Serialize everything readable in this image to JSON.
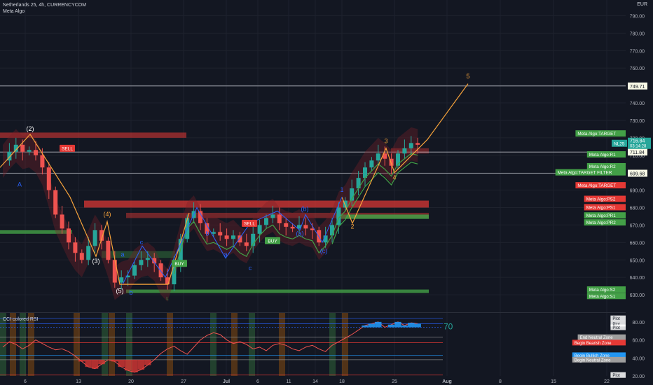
{
  "header": {
    "title": "Netherlands 25, 4h, CURRENCYCOM",
    "indicator": "Meta Algo",
    "currency": "EUR"
  },
  "colors": {
    "background": "#131722",
    "up": "#26a69a",
    "down": "#ef5350",
    "wave": "#f7a33b",
    "corrective": "#2962ff",
    "resistance": "#e53935",
    "support": "#43a047"
  },
  "chart_data": [
    {
      "type": "candlestick",
      "title": "Netherlands 25, 4h, CURRENCYCOM",
      "ylim": [
        620,
        795
      ],
      "y_ticks": [
        630,
        640,
        650,
        660,
        670,
        680,
        690,
        700,
        710,
        720,
        730,
        740,
        750,
        760,
        770,
        780,
        790
      ],
      "x_ticks": [
        "6",
        "13",
        "20",
        "27",
        "Jul",
        "6",
        "11",
        "14",
        "18",
        "25",
        "Aug",
        "8",
        "15",
        "22"
      ],
      "close_path": [
        707,
        712,
        716,
        712,
        713,
        710,
        703,
        690,
        676,
        668,
        660,
        654,
        650,
        658,
        667,
        661,
        650,
        637,
        640,
        641,
        647,
        650,
        651,
        648,
        640,
        636,
        648,
        662,
        674,
        678,
        671,
        665,
        666,
        664,
        662,
        664,
        660,
        658,
        665,
        670,
        674,
        676,
        671,
        669,
        668,
        670,
        668,
        667,
        660,
        664,
        670,
        680,
        684,
        691,
        697,
        703,
        707,
        711,
        708,
        704,
        711,
        714,
        717,
        716
      ],
      "levels": [
        {
          "label": "749.71",
          "value": 749.71
        },
        {
          "label": "711.84",
          "value": 711.84
        },
        {
          "label": "699.68",
          "value": 699.68
        }
      ],
      "last_price": {
        "symbol": "NL25",
        "price": "716.84",
        "countdown": "03:14:28"
      },
      "right_labels": [
        {
          "text": "Meta Algo:TARGET",
          "value": 722.5
        },
        {
          "text": "Meta Algo:R1",
          "value": 710.5
        },
        {
          "text": "Meta Algo:R2",
          "value": 703.7
        },
        {
          "text": "Meta Algo:TARGET FILTER",
          "value": 700.2
        },
        {
          "text": "Meta Algo:TARGET",
          "value": 692.8
        },
        {
          "text": "Meta Algo:PS2",
          "value": 685.0
        },
        {
          "text": "Meta Algo:PS1",
          "value": 680.2
        },
        {
          "text": "Meta Algo:PR1",
          "value": 675.5
        },
        {
          "text": "Meta Algo:PR2",
          "value": 671.5
        },
        {
          "text": "Meta Algo:S2",
          "value": 633.0
        },
        {
          "text": "Meta Algo:S1",
          "value": 629.3
        }
      ],
      "annotations": [
        "(2)",
        "(4)",
        "(3)",
        "(5)",
        "A",
        "a",
        "b",
        "c",
        "(a)",
        "(b)",
        "(c)",
        "1",
        "2",
        "3",
        "4",
        "5",
        "SELL",
        "BUY",
        "L"
      ]
    },
    {
      "type": "line",
      "title": "CCI colored RSI",
      "ylim": [
        20,
        90
      ],
      "y_ticks": [
        20,
        40,
        60,
        80
      ],
      "levels": [
        {
          "label": "Plot",
          "value": 84
        },
        {
          "label": "Plot",
          "value": 78
        },
        {
          "label": "Plot",
          "value": 74
        },
        {
          "label": "End Neutral Zone",
          "value": 63
        },
        {
          "label": "Begin Bearish Zone",
          "value": 57
        },
        {
          "label": "Begin Bullish Zone",
          "value": 43
        },
        {
          "label": "Begin Neutral Zone",
          "value": 38
        },
        {
          "label": "Plot",
          "value": 21
        }
      ],
      "overbought_label": "70",
      "y": [
        52,
        58,
        55,
        50,
        54,
        60,
        56,
        52,
        49,
        50,
        47,
        42,
        36,
        30,
        28,
        33,
        38,
        36,
        30,
        26,
        24,
        27,
        32,
        38,
        45,
        50,
        53,
        48,
        44,
        52,
        60,
        65,
        68,
        66,
        60,
        56,
        58,
        55,
        50,
        52,
        48,
        54,
        56,
        54,
        50,
        48,
        52,
        54,
        50,
        47,
        54,
        58,
        62,
        66,
        71,
        76,
        78,
        80,
        74,
        77,
        80,
        76,
        79,
        78
      ]
    }
  ]
}
